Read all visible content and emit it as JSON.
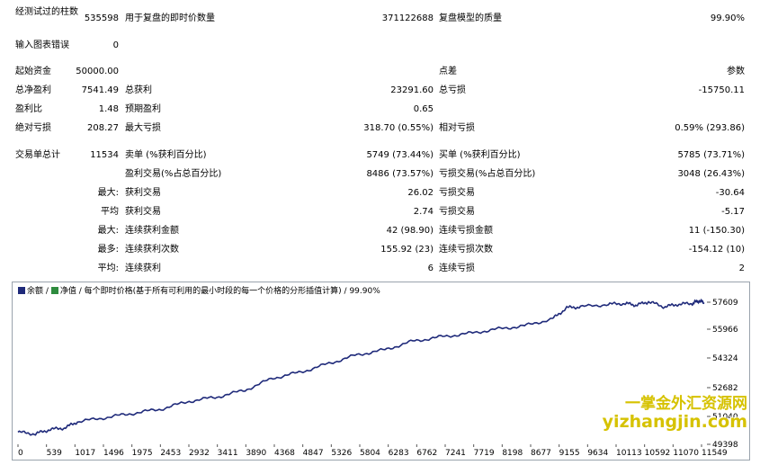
{
  "summary": {
    "bars_tested_label": "经测试过的柱数",
    "bars_tested_value": "535598",
    "ticks_label": "用于复盘的即时价数量",
    "ticks_value": "371122688",
    "quality_label": "复盘模型的质量",
    "quality_value": "99.90%",
    "mismatch_label": "输入图表错误",
    "mismatch_value": "0"
  },
  "stats": {
    "initial_deposit_label": "起始资金",
    "initial_deposit_value": "50000.00",
    "spread_label": "点差",
    "spread_value": "参数",
    "net_profit_label": "总净盈利",
    "net_profit_value": "7541.49",
    "gross_profit_label": "总获利",
    "gross_profit_value": "23291.60",
    "gross_loss_label": "总亏损",
    "gross_loss_value": "-15750.11",
    "profit_factor_label": "盈利比",
    "profit_factor_value": "1.48",
    "expected_payoff_label": "预期盈利",
    "expected_payoff_value": "0.65",
    "abs_drawdown_label": "绝对亏损",
    "abs_drawdown_value": "208.27",
    "max_drawdown_label": "最大亏损",
    "max_drawdown_value": "318.70 (0.55%)",
    "rel_drawdown_label": "相对亏损",
    "rel_drawdown_value": "0.59% (293.86)",
    "total_trades_label": "交易单总计",
    "total_trades_value": "11534",
    "short_label": "卖单 (%获利百分比)",
    "short_value": "5749 (73.44%)",
    "long_label": "买单 (%获利百分比)",
    "long_value": "5785 (73.71%)",
    "profit_trades_label": "盈利交易(%占总百分比)",
    "profit_trades_value": "8486 (73.57%)",
    "loss_trades_label": "亏损交易(%占总百分比)",
    "loss_trades_value": "3048 (26.43%)",
    "largest_prefix": "最大:",
    "largest_profit_label": "获利交易",
    "largest_profit_value": "26.02",
    "largest_loss_label": "亏损交易",
    "largest_loss_value": "-30.64",
    "average_prefix": "平均",
    "average_profit_label": "获利交易",
    "average_profit_value": "2.74",
    "average_loss_label": "亏损交易",
    "average_loss_value": "-5.17",
    "max_prefix": "最大:",
    "max_consec_wins_money_label": "连续获利金额",
    "max_consec_wins_money_value": "42 (98.90)",
    "max_consec_losses_money_label": "连续亏损金额",
    "max_consec_losses_money_value": "11 (-150.30)",
    "most_prefix": "最多:",
    "max_consec_profit_count_label": "连续获利次数",
    "max_consec_profit_count_value": "155.92 (23)",
    "max_consec_loss_count_label": "连续亏损次数",
    "max_consec_loss_count_value": "-154.12 (10)",
    "avg_prefix": "平均:",
    "avg_consec_wins_label": "连续获利",
    "avg_consec_wins_value": "6",
    "avg_consec_losses_label": "连续亏损",
    "avg_consec_losses_value": "2"
  },
  "chart_legend": {
    "balance": "余额",
    "sep1": "/",
    "equity": "净值",
    "sep2": "/",
    "model": "每个即时价格(基于所有可利用的最小时段的每一个价格的分形插值计算)",
    "sep3": "/",
    "quality": "99.90%"
  },
  "colors": {
    "balance_line": "#1f2a7a",
    "equity_swatch": "#2e8b3e",
    "balance_swatch": "#1f2a7a",
    "watermark": "#d6c200"
  },
  "watermark": {
    "line1": "一掌金外汇资源网",
    "line2": "yizhangjin.com"
  },
  "chart_data": {
    "type": "line",
    "title": "",
    "xlabel": "",
    "ylabel": "",
    "x_ticks": [
      "0",
      "539",
      "1017",
      "1496",
      "1975",
      "2453",
      "2932",
      "3411",
      "3890",
      "4368",
      "4847",
      "5326",
      "5804",
      "6283",
      "6762",
      "7241",
      "7719",
      "8198",
      "8677",
      "9155",
      "9634",
      "10113",
      "10592",
      "11070",
      "11549"
    ],
    "y_ticks": [
      "57609",
      "55966",
      "54324",
      "52682",
      "51040",
      "49398"
    ],
    "ylim": [
      49398,
      58200
    ],
    "xlim": [
      0,
      11800
    ],
    "series": [
      {
        "x": [
          0,
          300,
          539,
          800,
          1017,
          1496,
          1975,
          2453,
          2932,
          3411,
          3890,
          4368,
          4847,
          5326,
          5804,
          6283,
          6762,
          7241,
          7719,
          8198,
          8677,
          9155,
          9400,
          9634,
          10113,
          10400,
          10592,
          10800,
          11070,
          11300,
          11549,
          11650,
          11750
        ],
        "values": [
          50000,
          49900,
          50150,
          50250,
          50600,
          50850,
          51100,
          51350,
          51800,
          52050,
          52450,
          53150,
          53500,
          54000,
          54500,
          54800,
          55300,
          55550,
          55750,
          56000,
          56200,
          56600,
          57250,
          57300,
          57450,
          57500,
          57400,
          57600,
          57300,
          57450,
          57500,
          57650,
          57550
        ]
      }
    ]
  }
}
